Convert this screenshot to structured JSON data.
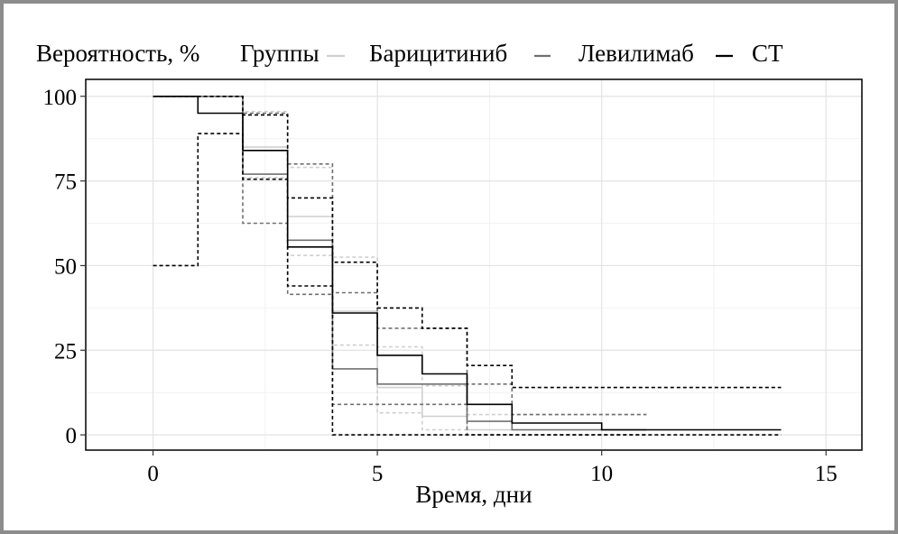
{
  "chart_data": {
    "type": "line",
    "subtype": "step",
    "title": "",
    "ylabel_top": "Вероятность, %",
    "legend": {
      "title": "Группы",
      "placement": "top",
      "entries": [
        {
          "label": "Барицитиниб",
          "color": "#cfcfcf"
        },
        {
          "label": "Левилимаб",
          "color": "#707070"
        },
        {
          "label": "СТ",
          "color": "#000000"
        }
      ]
    },
    "xlabel": "Время, дни",
    "xlim": [
      -1.5,
      15.8
    ],
    "ylim": [
      -4.5,
      105
    ],
    "xticks": [
      0,
      5,
      10,
      15
    ],
    "yticks": [
      0,
      25,
      50,
      75,
      100
    ],
    "grid": true,
    "series": [
      {
        "name": "Барицитиниб",
        "color": "#cfcfcf",
        "x": [
          0,
          2,
          3,
          4,
          5,
          6,
          7,
          8,
          11
        ],
        "y": [
          100,
          85,
          64.5,
          36.5,
          14,
          5.5,
          1.5,
          1.5,
          1.5
        ],
        "ci_lower": [
          100,
          76,
          53,
          26.5,
          6.5,
          1.5,
          0,
          0,
          0
        ],
        "ci_upper": [
          100,
          95.5,
          79,
          52.5,
          26,
          14.5,
          6,
          6,
          6
        ]
      },
      {
        "name": "Левилимаб",
        "color": "#707070",
        "x": [
          0,
          2,
          3,
          4,
          5,
          6,
          7,
          8,
          11
        ],
        "y": [
          100,
          77,
          57.5,
          19.5,
          15,
          15,
          4,
          1.5,
          1.5
        ],
        "ci_lower": [
          100,
          62.5,
          41.5,
          9,
          9,
          9,
          0,
          0,
          0
        ],
        "ci_upper": [
          100,
          95,
          80,
          42,
          31.5,
          31.5,
          15,
          6,
          6
        ]
      },
      {
        "name": "СТ",
        "color": "#000000",
        "x": [
          0,
          1,
          2,
          3,
          4,
          5,
          6,
          7,
          8,
          10,
          14
        ],
        "y": [
          100,
          95,
          84,
          55.5,
          36,
          23.5,
          18,
          9,
          3.5,
          1.5,
          1.5
        ],
        "ci_lower": [
          50,
          89,
          75.5,
          44,
          0,
          0,
          0,
          0,
          0,
          0,
          0
        ],
        "ci_upper": [
          100,
          100,
          94.5,
          70,
          51,
          37.5,
          31.5,
          20.5,
          14,
          14,
          14
        ]
      }
    ]
  }
}
